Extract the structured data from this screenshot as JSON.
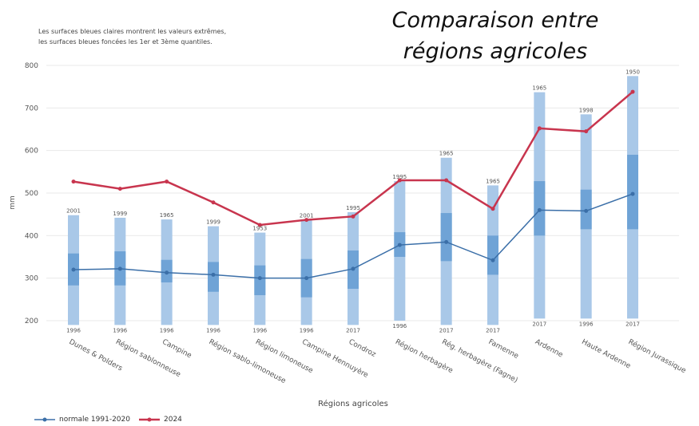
{
  "chart_data": {
    "type": "line",
    "title_lines": [
      "Comparaison entre",
      "régions agricoles"
    ],
    "subtitle_lines": [
      "Les surfaces bleues claires montrent les valeurs extrêmes,",
      "les surfaces bleues foncées les 1er et 3ème quantiles."
    ],
    "xlabel": "Régions agricoles",
    "ylabel": "mm",
    "ylim": [
      185,
      800
    ],
    "yticks": [
      200,
      300,
      400,
      500,
      600,
      700,
      800
    ],
    "grid": true,
    "legend_position": "bottom-left",
    "categories": [
      "Dunes & Polders",
      "Région sablonneuse",
      "Campine",
      "Région sablo-limoneuse",
      "Région limoneuse",
      "Campine Hennuyère",
      "Condroz",
      "Région herbagère",
      "Rég. herbagère (Fagne)",
      "Famenne",
      "Ardenne",
      "Haute Ardenne",
      "Région Jurassique"
    ],
    "ranges": {
      "min": [
        190,
        190,
        190,
        190,
        190,
        190,
        190,
        200,
        190,
        190,
        205,
        205,
        205
      ],
      "max": [
        448,
        442,
        438,
        422,
        407,
        437,
        455,
        528,
        583,
        518,
        737,
        685,
        775
      ],
      "q1": [
        283,
        283,
        290,
        268,
        260,
        255,
        275,
        350,
        340,
        308,
        400,
        415,
        415
      ],
      "q3": [
        358,
        363,
        343,
        338,
        330,
        345,
        365,
        408,
        453,
        400,
        528,
        508,
        590
      ],
      "max_year_labels": [
        "2001",
        "1999",
        "1965",
        "1999",
        "1953",
        "2001",
        "1995",
        "1995",
        "1965",
        "1965",
        "1965",
        "1998",
        "1950"
      ],
      "min_year_labels": [
        "1996",
        "1996",
        "1996",
        "1996",
        "1996",
        "1996",
        "2017",
        "1996",
        "2017",
        "2017",
        "2017",
        "1996",
        "2017"
      ]
    },
    "series": [
      {
        "name": "normale 1991-2020",
        "color": "#3b6fa8",
        "values": [
          320,
          322,
          313,
          308,
          300,
          300,
          322,
          378,
          385,
          342,
          460,
          458,
          498
        ]
      },
      {
        "name": "2024",
        "color": "#c8354e",
        "values": [
          527,
          510,
          527,
          478,
          425,
          437,
          445,
          530,
          530,
          463,
          652,
          645,
          738
        ]
      }
    ],
    "range_colors": {
      "extremes": "#a9c8e8",
      "quartiles": "#6fa3d6"
    }
  }
}
